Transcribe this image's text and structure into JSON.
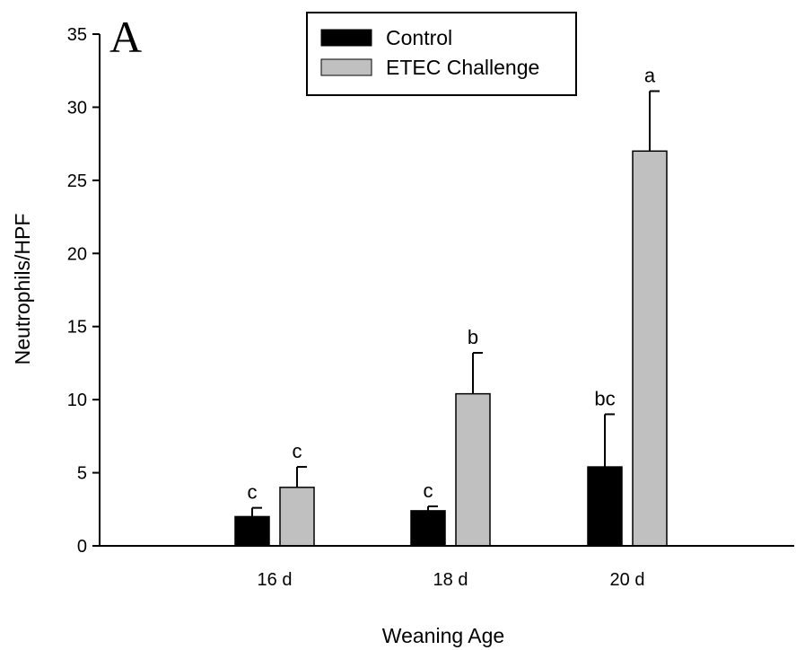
{
  "chart_data": {
    "type": "bar",
    "panel_label": "A",
    "xlabel": "Weaning Age",
    "ylabel": "Neutrophils/HPF",
    "categories": [
      "16 d",
      "18 d",
      "20 d"
    ],
    "ylim": [
      0,
      35
    ],
    "yticks": [
      0,
      5,
      10,
      15,
      20,
      25,
      30,
      35
    ],
    "grid": false,
    "legend_position": "top-center",
    "series": [
      {
        "name": "Control",
        "color": "#000000",
        "values": [
          2.0,
          2.4,
          5.4
        ],
        "errors": [
          0.6,
          0.3,
          3.6
        ],
        "labels": [
          "c",
          "c",
          "bc"
        ]
      },
      {
        "name": "ETEC Challenge",
        "color": "#c0c0c0",
        "values": [
          4.0,
          10.4,
          27.0
        ],
        "errors": [
          1.4,
          2.8,
          4.1
        ],
        "labels": [
          "c",
          "b",
          "a"
        ]
      }
    ]
  }
}
